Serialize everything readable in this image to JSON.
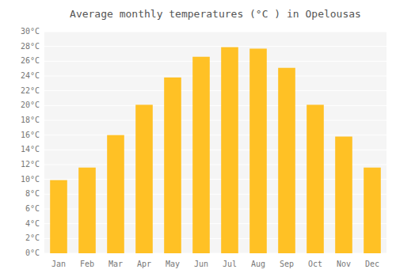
{
  "chart_data": {
    "type": "bar",
    "title": "Average monthly temperatures (°C ) in Opelousas",
    "categories": [
      "Jan",
      "Feb",
      "Mar",
      "Apr",
      "May",
      "Jun",
      "Jul",
      "Aug",
      "Sep",
      "Oct",
      "Nov",
      "Dec"
    ],
    "values": [
      9.9,
      11.6,
      16.0,
      20.1,
      23.8,
      26.6,
      27.9,
      27.7,
      25.1,
      20.1,
      15.8,
      11.6
    ],
    "color": "#FFC125",
    "ylim": [
      0,
      30
    ],
    "yticks": [
      {
        "value": 0,
        "label": "0°C"
      },
      {
        "value": 2,
        "label": "2°C"
      },
      {
        "value": 4,
        "label": "4°C"
      },
      {
        "value": 6,
        "label": "6°C"
      },
      {
        "value": 8,
        "label": "8°C"
      },
      {
        "value": 10,
        "label": "10°C"
      },
      {
        "value": 12,
        "label": "12°C"
      },
      {
        "value": 14,
        "label": "14°C"
      },
      {
        "value": 16,
        "label": "16°C"
      },
      {
        "value": 18,
        "label": "18°C"
      },
      {
        "value": 20,
        "label": "20°C"
      },
      {
        "value": 22,
        "label": "22°C"
      },
      {
        "value": 24,
        "label": "24°C"
      },
      {
        "value": 26,
        "label": "26°C"
      },
      {
        "value": 28,
        "label": "28°C"
      },
      {
        "value": 30,
        "label": "30°C"
      }
    ],
    "grid": true
  }
}
